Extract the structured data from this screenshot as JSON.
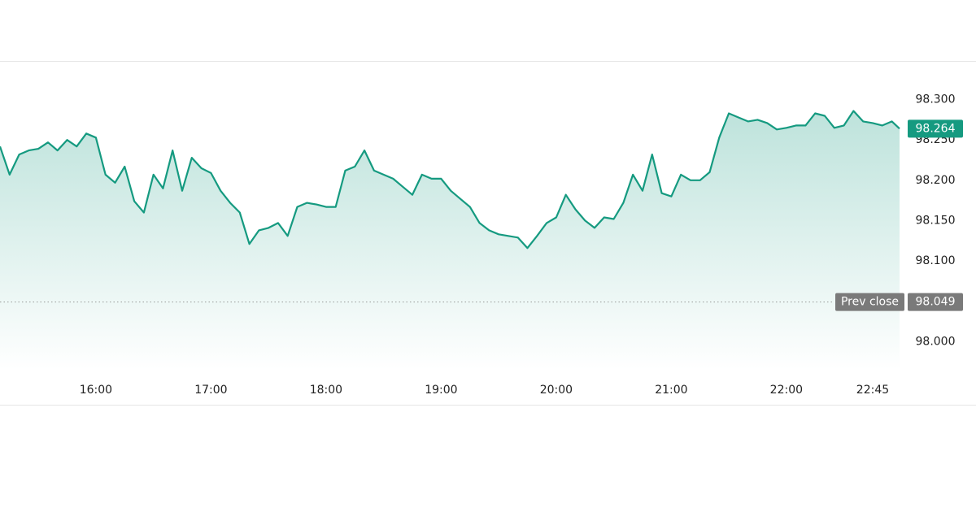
{
  "chart_data": {
    "type": "line",
    "color": "#159a80",
    "x": [
      "15:10",
      "15:15",
      "15:20",
      "15:25",
      "15:30",
      "15:35",
      "15:40",
      "15:45",
      "15:50",
      "15:55",
      "16:00",
      "16:05",
      "16:10",
      "16:15",
      "16:20",
      "16:25",
      "16:30",
      "16:35",
      "16:40",
      "16:45",
      "16:50",
      "16:55",
      "17:00",
      "17:05",
      "17:10",
      "17:15",
      "17:20",
      "17:25",
      "17:30",
      "17:35",
      "17:40",
      "17:45",
      "17:50",
      "17:55",
      "18:00",
      "18:05",
      "18:10",
      "18:15",
      "18:20",
      "18:25",
      "18:30",
      "18:35",
      "18:40",
      "18:45",
      "18:50",
      "18:55",
      "19:00",
      "19:05",
      "19:10",
      "19:15",
      "19:20",
      "19:25",
      "19:30",
      "19:35",
      "19:40",
      "19:45",
      "19:50",
      "19:55",
      "20:00",
      "20:05",
      "20:10",
      "20:15",
      "20:20",
      "20:25",
      "20:30",
      "20:35",
      "20:40",
      "20:45",
      "20:50",
      "20:55",
      "21:00",
      "21:05",
      "21:10",
      "21:15",
      "21:20",
      "21:25",
      "21:30",
      "21:35",
      "21:40",
      "21:45",
      "21:50",
      "21:55",
      "22:00",
      "22:05",
      "22:10",
      "22:15",
      "22:20",
      "22:25",
      "22:30",
      "22:35",
      "22:40",
      "22:45",
      "22:50",
      "22:55",
      "22:59"
    ],
    "values": [
      98.242,
      98.207,
      98.232,
      98.237,
      98.239,
      98.247,
      98.237,
      98.25,
      98.242,
      98.258,
      98.253,
      98.207,
      98.197,
      98.217,
      98.174,
      98.16,
      98.207,
      98.19,
      98.237,
      98.187,
      98.228,
      98.215,
      98.209,
      98.187,
      98.172,
      98.16,
      98.121,
      98.138,
      98.141,
      98.147,
      98.131,
      98.167,
      98.172,
      98.17,
      98.167,
      98.167,
      98.212,
      98.217,
      98.237,
      98.212,
      98.207,
      98.202,
      98.192,
      98.182,
      98.207,
      98.202,
      98.202,
      98.187,
      98.177,
      98.167,
      98.147,
      98.138,
      98.133,
      98.131,
      98.129,
      98.116,
      98.131,
      98.147,
      98.154,
      98.182,
      98.164,
      98.15,
      98.141,
      98.154,
      98.152,
      98.172,
      98.207,
      98.187,
      98.232,
      98.184,
      98.18,
      98.207,
      98.2,
      98.2,
      98.21,
      98.253,
      98.283,
      98.278,
      98.273,
      98.275,
      98.271,
      98.263,
      98.265,
      98.268,
      98.268,
      98.283,
      98.28,
      98.265,
      98.268,
      98.286,
      98.273,
      98.271,
      98.268,
      98.273,
      98.264
    ],
    "xlim": [
      "15:10",
      "22:59"
    ],
    "xticks": [
      "16:00",
      "17:00",
      "18:00",
      "19:00",
      "20:00",
      "21:00",
      "22:00",
      "22:45"
    ],
    "ylim": [
      97.965,
      98.348
    ],
    "yticks": [
      {
        "value": 98,
        "label": "98.000"
      },
      {
        "value": 98.1,
        "label": "98.100"
      },
      {
        "value": 98.15,
        "label": "98.150"
      },
      {
        "value": 98.2,
        "label": "98.200"
      },
      {
        "value": 98.25,
        "label": "98.250"
      },
      {
        "value": 98.3,
        "label": "98.300"
      }
    ],
    "last_value": 98.264,
    "prev_close": {
      "label": "Prev close",
      "value": 98.049
    }
  }
}
